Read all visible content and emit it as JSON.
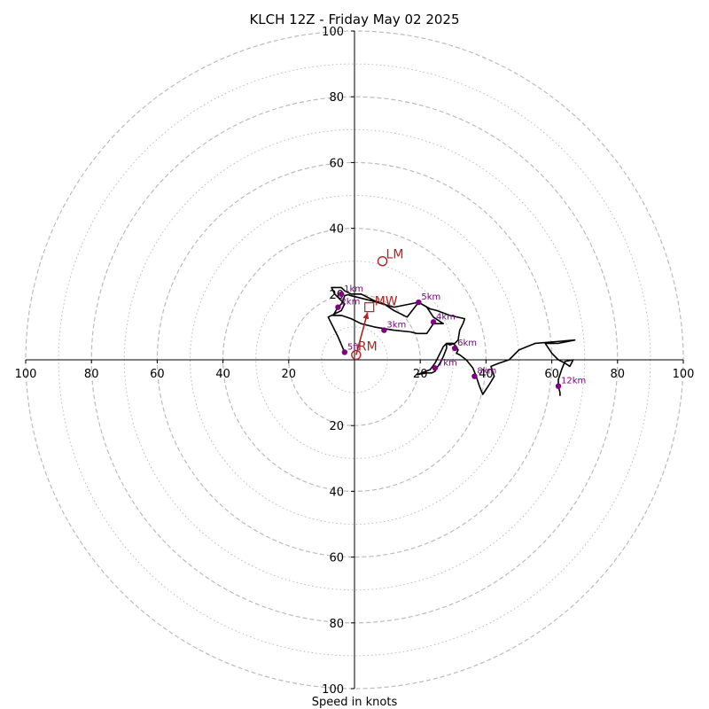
{
  "chart_data": {
    "type": "hodograph",
    "title": "KLCH 12Z - Friday May 02 2025",
    "xlabel": "Speed in knots",
    "range": [
      -100,
      100
    ],
    "ring_major": [
      20,
      40,
      60,
      80,
      100
    ],
    "ring_minor": [
      10,
      30,
      50,
      70,
      90
    ],
    "ticks_x": [
      {
        "value": -100,
        "label": "100"
      },
      {
        "value": -80,
        "label": "80"
      },
      {
        "value": -60,
        "label": "60"
      },
      {
        "value": -40,
        "label": "40"
      },
      {
        "value": -20,
        "label": "20"
      },
      {
        "value": 20,
        "label": "20"
      },
      {
        "value": 40,
        "label": "40"
      },
      {
        "value": 60,
        "label": "60"
      },
      {
        "value": 80,
        "label": "80"
      },
      {
        "value": 100,
        "label": "100"
      }
    ],
    "ticks_y": [
      {
        "value": 100,
        "label": "100"
      },
      {
        "value": 80,
        "label": "80"
      },
      {
        "value": 60,
        "label": "60"
      },
      {
        "value": 40,
        "label": "40"
      },
      {
        "value": 20,
        "label": "20"
      },
      {
        "value": -20,
        "label": "20"
      },
      {
        "value": -40,
        "label": "40"
      },
      {
        "value": -60,
        "label": "60"
      },
      {
        "value": -80,
        "label": "80"
      },
      {
        "value": -100,
        "label": "100"
      }
    ],
    "trace": [
      [
        -3,
        2.3
      ],
      [
        -5,
        7
      ],
      [
        -8,
        13
      ],
      [
        -6,
        14
      ],
      [
        -4,
        15
      ],
      [
        -3,
        17
      ],
      [
        -6,
        20
      ],
      [
        -7,
        22
      ],
      [
        -4,
        22
      ],
      [
        -3,
        21
      ],
      [
        -1,
        20
      ],
      [
        2,
        20
      ],
      [
        6,
        18
      ],
      [
        9,
        17
      ],
      [
        12,
        15
      ],
      [
        16,
        13
      ],
      [
        19.5,
        17.5
      ],
      [
        22,
        16
      ],
      [
        24,
        13
      ],
      [
        27,
        11
      ],
      [
        24,
        11
      ],
      [
        22,
        8
      ],
      [
        19,
        8
      ],
      [
        17,
        8.5
      ],
      [
        12,
        9
      ],
      [
        9,
        9.5
      ],
      [
        6,
        10
      ],
      [
        2,
        11
      ],
      [
        -1,
        12.5
      ],
      [
        -4,
        13.5
      ],
      [
        -6.5,
        13.5
      ],
      [
        -5,
        16
      ],
      [
        -4,
        17
      ],
      [
        -3.5,
        18
      ],
      [
        -3,
        19.5
      ],
      [
        -2,
        19.8
      ],
      [
        -1,
        19.5
      ],
      [
        5,
        18
      ],
      [
        12,
        16
      ],
      [
        19.5,
        17.5
      ],
      [
        23,
        15.5
      ],
      [
        25,
        15
      ],
      [
        29,
        13.5
      ],
      [
        33.5,
        12.5
      ],
      [
        33,
        11
      ],
      [
        32,
        9
      ],
      [
        31.5,
        6
      ],
      [
        30.5,
        5
      ],
      [
        29,
        4.5
      ],
      [
        28,
        5
      ],
      [
        28,
        3.5
      ],
      [
        27,
        1
      ],
      [
        26,
        -1
      ],
      [
        25,
        -2.5
      ],
      [
        24.5,
        -3.5
      ],
      [
        23.5,
        -4
      ],
      [
        22,
        -4
      ],
      [
        19,
        -4.5
      ],
      [
        23,
        -3
      ],
      [
        24.5,
        -1
      ],
      [
        25,
        0
      ],
      [
        26,
        2
      ],
      [
        27,
        4
      ],
      [
        28,
        5
      ],
      [
        30,
        5
      ],
      [
        31,
        4
      ],
      [
        31.5,
        3
      ],
      [
        31,
        2
      ],
      [
        32,
        1.5
      ],
      [
        34,
        0
      ],
      [
        36,
        -2.5
      ],
      [
        37,
        -5
      ],
      [
        38,
        -8
      ],
      [
        39,
        -10.5
      ],
      [
        41,
        -7.5
      ],
      [
        42.5,
        -5
      ],
      [
        42,
        -3.5
      ],
      [
        41.5,
        -2
      ],
      [
        44,
        -1
      ],
      [
        47,
        0
      ],
      [
        50,
        3
      ],
      [
        55,
        5
      ],
      [
        67,
        6
      ],
      [
        62,
        5
      ],
      [
        58,
        5
      ],
      [
        60,
        2
      ],
      [
        62,
        0
      ],
      [
        64,
        -1
      ],
      [
        65.5,
        -2
      ],
      [
        66.5,
        0
      ],
      [
        66.5,
        0
      ],
      [
        64,
        -0.5
      ],
      [
        63,
        -3
      ],
      [
        62,
        -6
      ],
      [
        62,
        -8
      ],
      [
        62.5,
        -10
      ],
      [
        62.5,
        -11
      ]
    ],
    "height_markers": [
      {
        "label": "5ft",
        "x": -3,
        "y": 2.3
      },
      {
        "label": "1km",
        "x": -4,
        "y": 20
      },
      {
        "label": "2km",
        "x": -5,
        "y": 16
      },
      {
        "label": "3km",
        "x": 9,
        "y": 9
      },
      {
        "label": "4km",
        "x": 24,
        "y": 11.5
      },
      {
        "label": "5km",
        "x": 19.5,
        "y": 17.5
      },
      {
        "label": "6km",
        "x": 30.5,
        "y": 3.5
      },
      {
        "label": "7km",
        "x": 24.5,
        "y": -2.5
      },
      {
        "label": "8km",
        "x": 36.5,
        "y": -5
      },
      {
        "label": "12km",
        "x": 62,
        "y": -8
      }
    ],
    "storm_motion": {
      "mw": {
        "label": "MW",
        "x": 4.5,
        "y": 16
      },
      "lm": {
        "label": "LM",
        "x": 8.5,
        "y": 30
      },
      "rm": {
        "label": "RM",
        "x": 0.5,
        "y": 1.5
      },
      "colors": {
        "motion": "#b22222",
        "trace": "#000000",
        "markers": "#800080",
        "grid": "#bbbbbb"
      }
    }
  }
}
